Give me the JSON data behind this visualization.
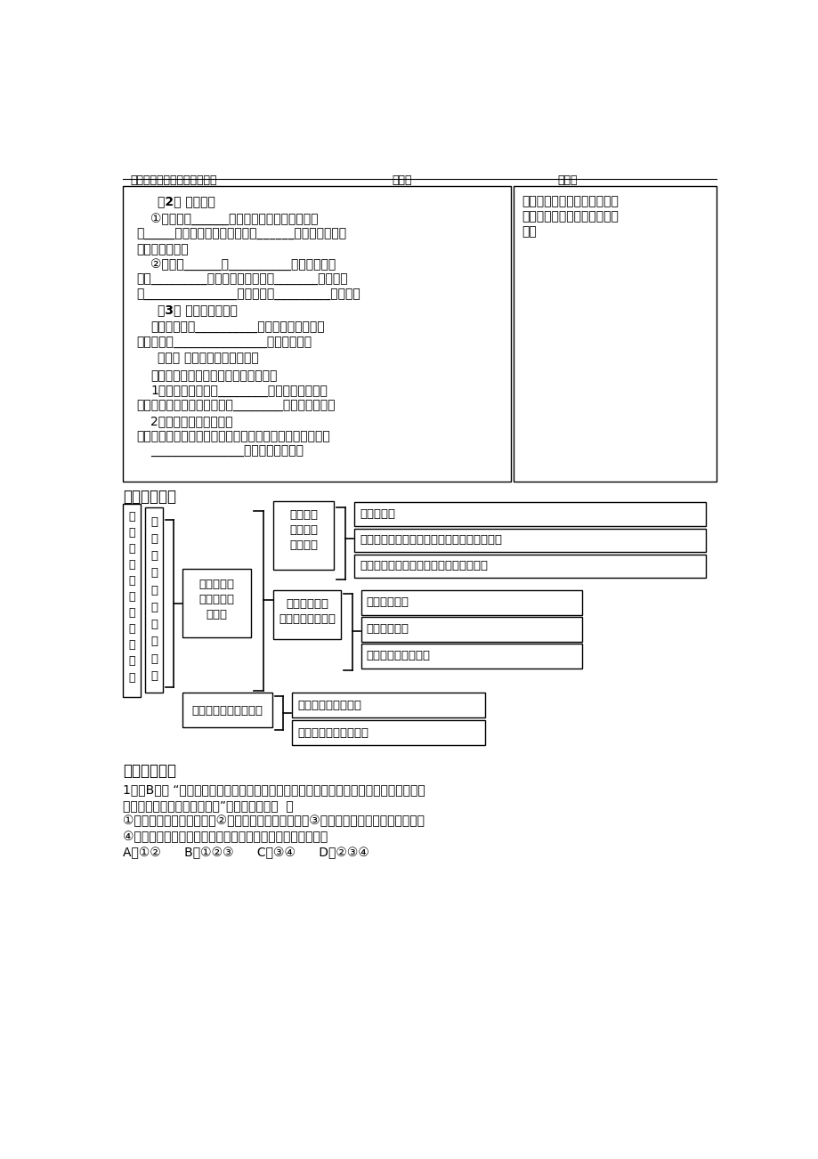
{
  "bg_color": "#ffffff",
  "header_text": "盐化中学高一政治必修二学案",
  "header_class": "班级：",
  "header_name": "姓名：",
  "section4_title": "四、我的收获",
  "section5_title": "五、自我检测",
  "left_lines": [
    [
      true,
      30,
      "（2） 民族团结"
    ],
    [
      false,
      20,
      "①含义：在______基础上，我国形成了各族人"
    ],
    [
      false,
      0,
      "民_____、友好往来、互相合作、______，谁也离不开谁"
    ],
    [
      false,
      0,
      "的大团结局面。"
    ],
    [
      false,
      20,
      "②意义：______、__________，是衡量一个"
    ],
    [
      false,
      0,
      "国家_________的重要标志之一，是_______的前提，"
    ],
    [
      false,
      0,
      "是_______________的保证，是_________的基础。"
    ],
    [
      true,
      30,
      "（3） 各民族共同繁荣"
    ],
    [
      false,
      20,
      "原因：这是由__________决定的，是国家实现"
    ],
    [
      false,
      0,
      "和中华民族_______________的必然要求。"
    ],
    [
      true,
      30,
      "（二） 巩固社会主义民族关系"
    ],
    [
      false,
      20,
      "当前应当如何巩固社会主义民族关系？"
    ],
    [
      false,
      20,
      "1、我国已经形成了________的社会主义民族关"
    ],
    [
      false,
      0,
      "系。我们应该十分珍惜、不断________这种民族关系。"
    ],
    [
      false,
      20,
      "2、自觉履行宪法规定的"
    ],
    [
      false,
      0,
      "的义务，是每个中国公民的责任。作为当代青年学生，要把"
    ],
    [
      false,
      20,
      "_______________的责任付诸行动。"
    ]
  ],
  "right_lines": [
    "合作探究二：怎样才能继续把",
    "中华民族团结进步事业推向前",
    "进？"
  ],
  "vtexts1": [
    "平",
    "等",
    "、",
    "团",
    "结",
    "、",
    "共",
    "同",
    "繁",
    "荣",
    "："
  ],
  "vtexts2": [
    "处",
    "理",
    "民",
    "族",
    "关",
    "系",
    "的",
    "原",
    "则",
    "："
  ],
  "node_basic": "我国处理民\n族关系的基\n本原则",
  "node_unified": [
    "我国是统",
    "一的多民",
    "族国家："
  ],
  "items_unified": [
    "民族状况：",
    "我国伟大的祖国是全国各族人民共同缔造的：",
    "新型的民族关系：平等、团结、互助和谐"
  ],
  "node_principles": [
    "我国处理民族",
    "关系的基本原则："
  ],
  "items_principles": [
    "民族平等原则",
    "民族团结原则",
    "各民族共同繁荣原则"
  ],
  "node_consolidate": "巩固社会主义民族关系",
  "items_consolidate": [
    "如何对待民族关系：",
    "如何处理好民族关系："
  ],
  "quiz_lines": [
    "1．（B级） “太阳和月亮是一个妈妈的女儿，她们的妈妈叫光明；汉族和藏族是一个妈妈",
    "的女儿，我们的妈妈叫中国。”歌词的寓意是（  ）",
    "①我国的民族差别已不存在②我国是统一的多民族国家③我国各民族之间的团结日益巩固",
    "④我国各民族已形成了平等团结互助和谐的社会主义民族关系",
    "A．①②      B．①②③      C．③④      D．②③④"
  ]
}
